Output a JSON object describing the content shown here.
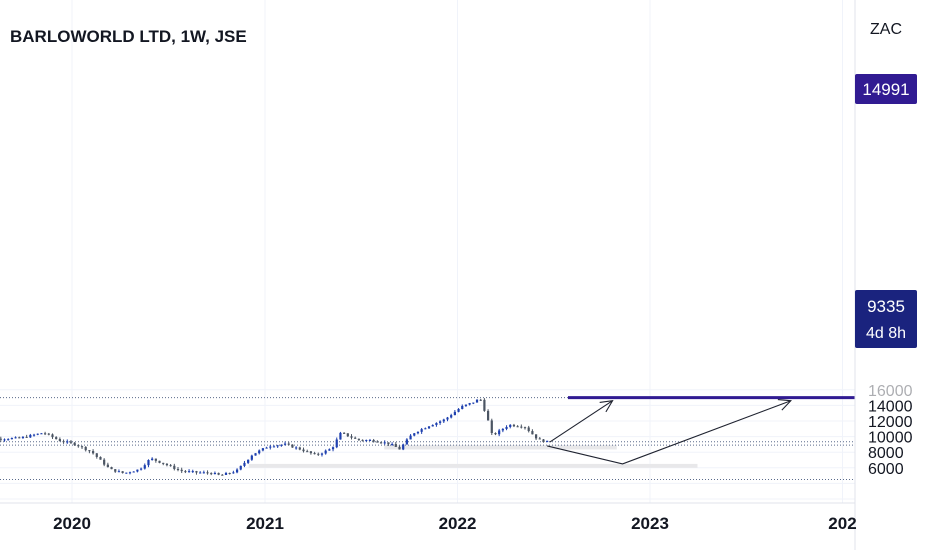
{
  "header": {
    "title": "BARLOWORLD LTD, 1W, JSE",
    "currency": "ZAC"
  },
  "colors": {
    "up": "#1e40af",
    "down": "#4b5563",
    "resistance": "#311b92",
    "badge_resistance": "#311b92",
    "badge_price": "#1a237e",
    "zone": "#e8e8ea",
    "dotted": "#5a6a8a"
  },
  "price_badge": {
    "value": "9335",
    "countdown": "4d 8h"
  },
  "resistance_badge": {
    "value": "14991"
  },
  "chart_data": {
    "type": "candlestick",
    "title": "BARLOWORLD LTD, 1W, JSE",
    "y_unit": "ZAC",
    "x_ticks": [
      "2020",
      "2021",
      "2022",
      "2023",
      "202"
    ],
    "y_ticks": [
      6000,
      8000,
      10000,
      12000,
      14000
    ],
    "y_range": [
      4300,
      16100
    ],
    "resistance_level": 14991,
    "current_price": 9335,
    "dotted_levels": [
      14991,
      9335,
      8900,
      4500
    ],
    "demand_zones": [
      {
        "from": "2021-08-15",
        "to": "2022-10-30",
        "low": 8350,
        "high": 8900
      },
      {
        "from": "2020-12-01",
        "to": "2023-04-01",
        "low": 6000,
        "high": 6500
      }
    ],
    "projection_arrows": [
      {
        "points": [
          [
            "2022-06-25",
            9300
          ],
          [
            "2022-10-22",
            14600
          ]
        ]
      },
      {
        "points": [
          [
            "2022-06-20",
            8800
          ],
          [
            "2022-11-10",
            6500
          ],
          [
            "2023-09-25",
            14600
          ]
        ]
      }
    ],
    "keyframes": [
      [
        "2019-07-01",
        9000
      ],
      [
        "2019-08-15",
        9700
      ],
      [
        "2019-10-01",
        9800
      ],
      [
        "2019-11-15",
        10500
      ],
      [
        "2019-12-15",
        9500
      ],
      [
        "2020-01-15",
        9000
      ],
      [
        "2020-02-15",
        8000
      ],
      [
        "2020-03-01",
        7000
      ],
      [
        "2020-03-20",
        5800
      ],
      [
        "2020-04-15",
        5300
      ],
      [
        "2020-05-15",
        5800
      ],
      [
        "2020-06-05",
        7200
      ],
      [
        "2020-07-01",
        6500
      ],
      [
        "2020-08-01",
        5600
      ],
      [
        "2020-09-01",
        5400
      ],
      [
        "2020-10-01",
        5300
      ],
      [
        "2020-10-15",
        5000
      ],
      [
        "2020-11-15",
        5600
      ],
      [
        "2020-12-15",
        7700
      ],
      [
        "2021-01-15",
        8800
      ],
      [
        "2021-02-15",
        9000
      ],
      [
        "2021-03-15",
        8400
      ],
      [
        "2021-04-15",
        7600
      ],
      [
        "2021-05-15",
        8500
      ],
      [
        "2021-06-01",
        10500
      ],
      [
        "2021-07-01",
        9600
      ],
      [
        "2021-08-01",
        9500
      ],
      [
        "2021-09-01",
        9100
      ],
      [
        "2021-09-20",
        8400
      ],
      [
        "2021-10-15",
        10400
      ],
      [
        "2021-11-15",
        11400
      ],
      [
        "2021-12-15",
        12200
      ],
      [
        "2022-01-15",
        13800
      ],
      [
        "2022-02-10",
        14500
      ],
      [
        "2022-02-20",
        14900
      ],
      [
        "2022-03-05",
        12500
      ],
      [
        "2022-03-15",
        10100
      ],
      [
        "2022-04-15",
        11500
      ],
      [
        "2022-05-15",
        11300
      ],
      [
        "2022-06-10",
        9600
      ],
      [
        "2022-06-25",
        9335
      ]
    ]
  }
}
